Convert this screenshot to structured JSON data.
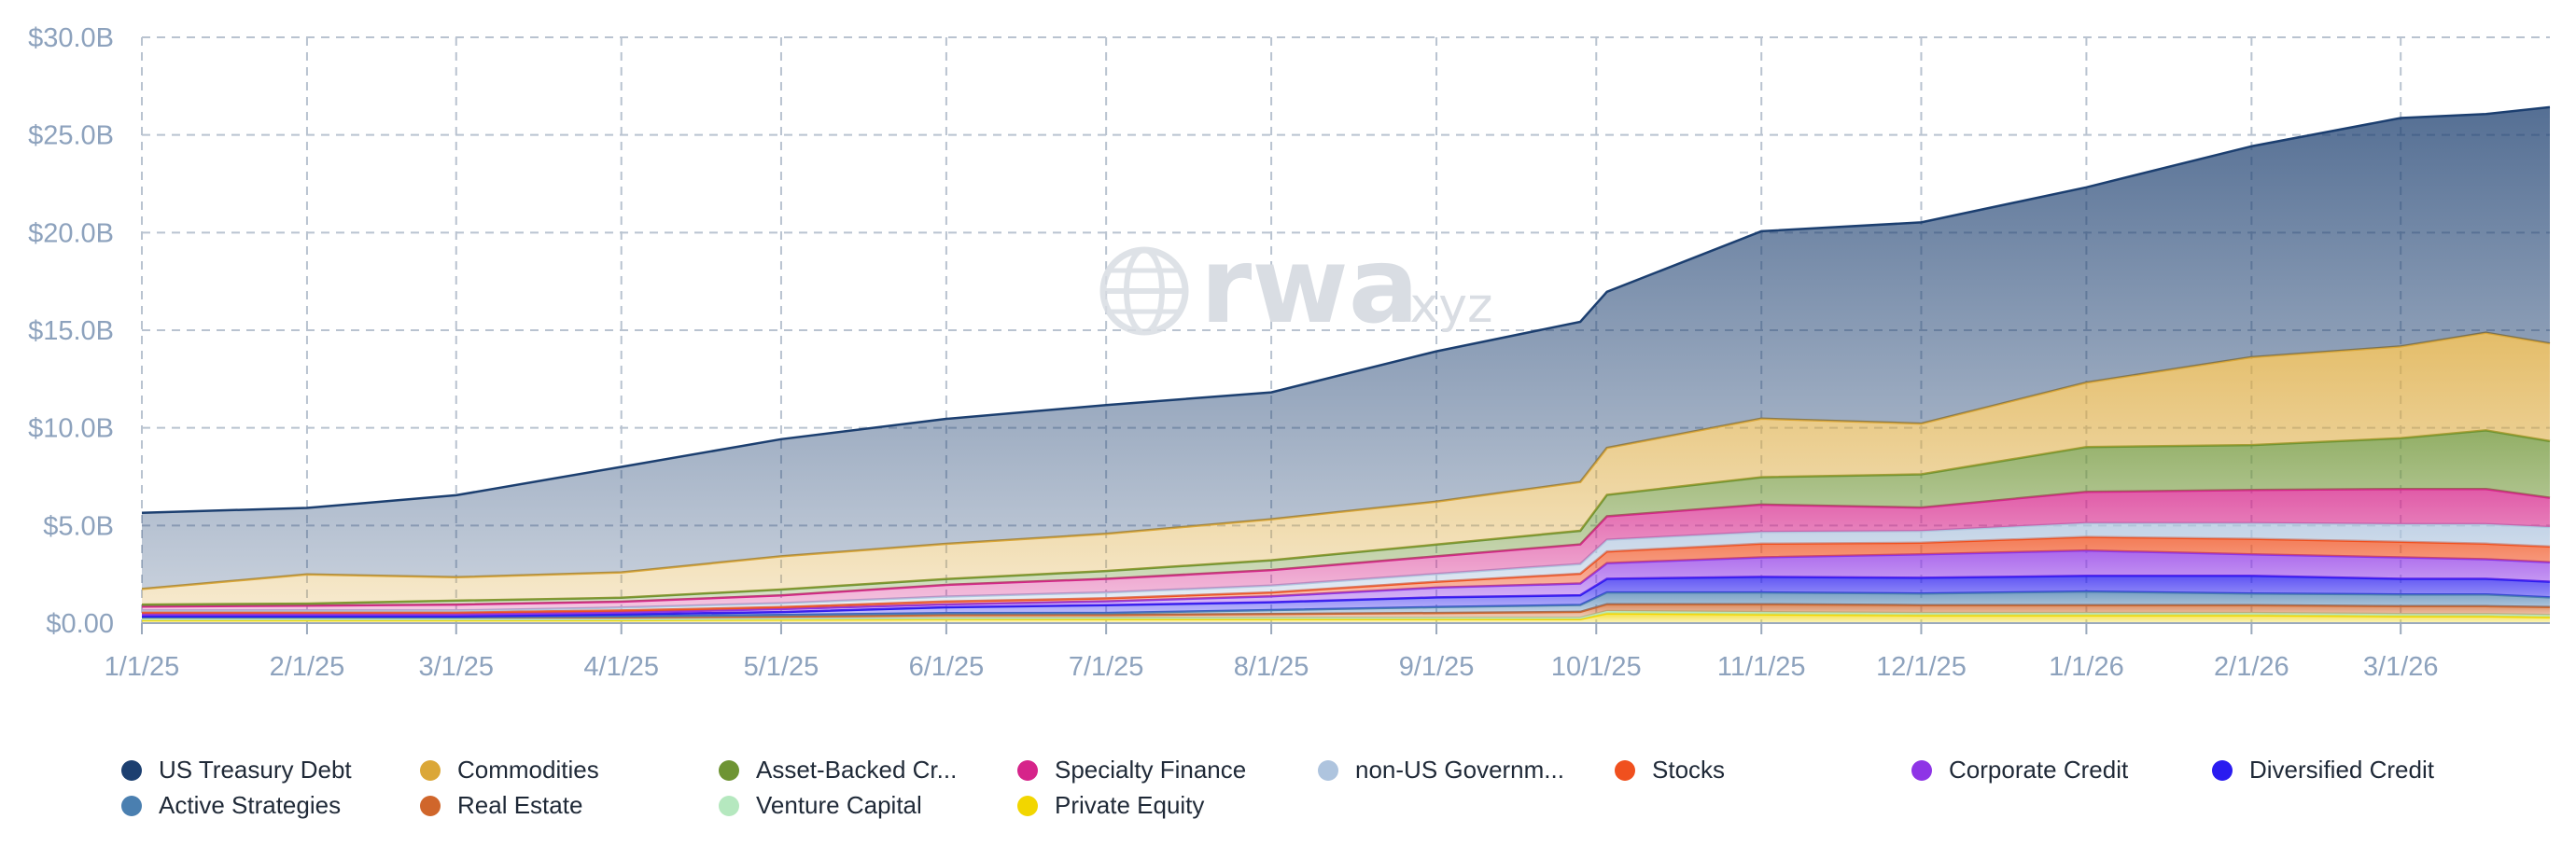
{
  "chart_data": {
    "type": "area",
    "stacked": true,
    "title": "",
    "xlabel": "",
    "ylabel": "",
    "ylim": [
      0,
      30
    ],
    "y_unit": "B USD",
    "y_ticks": [
      0,
      5,
      10,
      15,
      20,
      25,
      30
    ],
    "y_tick_labels": [
      "$0.00",
      "$5.0B",
      "$10.0B",
      "$15.0B",
      "$20.0B",
      "$25.0B",
      "$30.0B"
    ],
    "x_ticks": [
      "1/1/25",
      "2/1/25",
      "3/1/25",
      "4/1/25",
      "5/1/25",
      "6/1/25",
      "7/1/25",
      "8/1/25",
      "9/1/25",
      "10/1/25",
      "11/1/25",
      "12/1/25",
      "1/1/26",
      "2/1/26",
      "3/1/26"
    ],
    "x_tick_days": [
      0,
      31,
      59,
      90,
      120,
      151,
      181,
      212,
      243,
      273,
      304,
      334,
      365,
      396,
      424
    ],
    "x_range_days": [
      0,
      452
    ],
    "grid": true,
    "legend_position": "bottom",
    "watermark": {
      "brand": "rwa",
      "suffix": ".xyz"
    },
    "x_days": [
      0,
      31,
      59,
      90,
      120,
      151,
      181,
      212,
      243,
      270,
      275,
      304,
      334,
      365,
      396,
      424,
      440,
      452
    ],
    "series": [
      {
        "name": "Private Equity",
        "color": "#f2d600",
        "values": [
          0.15,
          0.15,
          0.15,
          0.15,
          0.18,
          0.2,
          0.2,
          0.2,
          0.2,
          0.2,
          0.5,
          0.45,
          0.4,
          0.4,
          0.4,
          0.35,
          0.35,
          0.3
        ]
      },
      {
        "name": "Venture Capital",
        "color": "#b5e8bf",
        "values": [
          0.05,
          0.05,
          0.05,
          0.05,
          0.06,
          0.06,
          0.07,
          0.07,
          0.07,
          0.08,
          0.12,
          0.12,
          0.12,
          0.12,
          0.12,
          0.12,
          0.12,
          0.12
        ]
      },
      {
        "name": "Real Estate",
        "color": "#d0662b",
        "values": [
          0.1,
          0.1,
          0.1,
          0.1,
          0.1,
          0.15,
          0.15,
          0.2,
          0.25,
          0.3,
          0.35,
          0.4,
          0.4,
          0.4,
          0.4,
          0.4,
          0.4,
          0.4
        ]
      },
      {
        "name": "Active Strategies",
        "color": "#4a7fb0",
        "values": [
          0.0,
          0.0,
          0.0,
          0.05,
          0.08,
          0.1,
          0.1,
          0.2,
          0.3,
          0.35,
          0.6,
          0.6,
          0.6,
          0.7,
          0.6,
          0.6,
          0.6,
          0.5
        ]
      },
      {
        "name": "Diversified Credit",
        "color": "#2a1cf0",
        "values": [
          0.05,
          0.05,
          0.05,
          0.1,
          0.15,
          0.3,
          0.4,
          0.4,
          0.5,
          0.5,
          0.7,
          0.8,
          0.8,
          0.8,
          0.9,
          0.8,
          0.8,
          0.8
        ]
      },
      {
        "name": "Corporate Credit",
        "color": "#8e35e6",
        "values": [
          0.1,
          0.1,
          0.1,
          0.1,
          0.15,
          0.15,
          0.2,
          0.3,
          0.5,
          0.6,
          0.8,
          1.0,
          1.2,
          1.3,
          1.1,
          1.1,
          1.0,
          1.0
        ]
      },
      {
        "name": "Stocks",
        "color": "#f0501e",
        "values": [
          0.1,
          0.1,
          0.1,
          0.1,
          0.1,
          0.15,
          0.15,
          0.2,
          0.3,
          0.5,
          0.6,
          0.7,
          0.6,
          0.7,
          0.8,
          0.8,
          0.8,
          0.8
        ]
      },
      {
        "name": "non-US Government Debt",
        "color": "#aec4de",
        "values": [
          0.1,
          0.1,
          0.1,
          0.15,
          0.2,
          0.25,
          0.3,
          0.35,
          0.4,
          0.5,
          0.6,
          0.6,
          0.6,
          0.7,
          0.8,
          0.9,
          1.0,
          1.0
        ]
      },
      {
        "name": "Specialty Finance",
        "color": "#d6248a",
        "values": [
          0.2,
          0.25,
          0.3,
          0.3,
          0.4,
          0.6,
          0.7,
          0.8,
          0.9,
          1.0,
          1.2,
          1.4,
          1.2,
          1.6,
          1.7,
          1.8,
          1.8,
          1.5
        ]
      },
      {
        "name": "Asset-Backed Credit",
        "color": "#6e9433",
        "values": [
          0.1,
          0.1,
          0.2,
          0.2,
          0.3,
          0.3,
          0.4,
          0.5,
          0.6,
          0.7,
          1.1,
          1.4,
          1.7,
          2.3,
          2.3,
          2.6,
          3.0,
          2.9
        ]
      },
      {
        "name": "Commodities",
        "color": "#dba737",
        "values": [
          0.8,
          1.5,
          1.2,
          1.3,
          1.7,
          1.8,
          1.9,
          2.1,
          2.2,
          2.5,
          2.4,
          3.0,
          2.6,
          3.3,
          4.5,
          4.7,
          5.0,
          5.0
        ]
      },
      {
        "name": "US Treasury Debt",
        "color": "#1c3f70",
        "values": [
          3.9,
          3.4,
          4.2,
          5.4,
          6.0,
          6.4,
          6.6,
          6.5,
          7.7,
          8.2,
          8.0,
          9.6,
          10.3,
          10.0,
          10.8,
          11.7,
          11.2,
          12.1
        ]
      }
    ]
  },
  "legend": [
    {
      "label": "US Treasury Debt",
      "color": "#1c3f70"
    },
    {
      "label": "Commodities",
      "color": "#dba737"
    },
    {
      "label": "Asset-Backed Cr...",
      "color": "#6e9433"
    },
    {
      "label": "Specialty Finance",
      "color": "#d6248a"
    },
    {
      "label": "non-US Governm...",
      "color": "#aec4de"
    },
    {
      "label": "Stocks",
      "color": "#f0501e"
    },
    {
      "label": "Corporate Credit",
      "color": "#8e35e6"
    },
    {
      "label": "Diversified Credit",
      "color": "#2a1cf0"
    },
    {
      "label": "Active Strategies",
      "color": "#4a7fb0"
    },
    {
      "label": "Real Estate",
      "color": "#d0662b"
    },
    {
      "label": "Venture Capital",
      "color": "#b5e8bf"
    },
    {
      "label": "Private Equity",
      "color": "#f2d600"
    }
  ]
}
